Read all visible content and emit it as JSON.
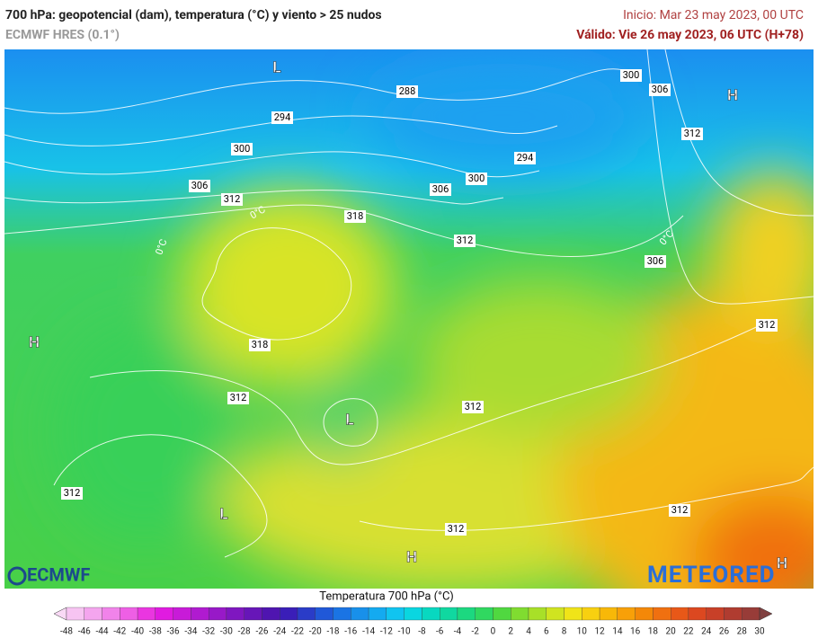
{
  "header": {
    "title": "700 hPa: geopotencial (dam), temperatura (°C) y viento > 25 nudos",
    "model": "ECMWF HRES (0.1°)",
    "init": "Inicio: Mar 23 may 2023, 00 UTC",
    "valid": "Válido: Vie 26 may 2023, 06 UTC (H+78)"
  },
  "map": {
    "contour_labels": [
      288,
      294,
      300,
      306,
      312,
      318,
      318,
      312,
      312,
      312,
      312,
      312,
      312,
      306,
      312,
      306,
      300,
      294,
      300,
      306,
      312
    ],
    "pressure_centers": [
      "L",
      "H",
      "H",
      "L",
      "L",
      "H",
      "H"
    ],
    "isotherm_labels": [
      "0°C",
      "0°C",
      "0°C"
    ],
    "logos": [
      "ECMWF",
      "METEORED"
    ]
  },
  "colorbar": {
    "title": "Temperatura 700 hPa (°C)",
    "ticks": [
      -48,
      -46,
      -44,
      -42,
      -40,
      -38,
      -36,
      -34,
      -32,
      -30,
      -28,
      -26,
      -24,
      -22,
      -20,
      -18,
      -16,
      -14,
      -12,
      -10,
      -8,
      -6,
      -4,
      -2,
      0,
      2,
      4,
      6,
      8,
      10,
      12,
      14,
      16,
      18,
      20,
      22,
      24,
      26,
      28,
      30
    ],
    "colors": [
      "#f9d9f5",
      "#f7c4f2",
      "#f4a5ee",
      "#f183ea",
      "#ee5fe5",
      "#ea36e0",
      "#e01be0",
      "#c81bd8",
      "#b01bd0",
      "#9819c8",
      "#7f17c0",
      "#6716b8",
      "#4f15b0",
      "#3a1eb8",
      "#2a3cc8",
      "#2058d8",
      "#1a74e4",
      "#1890ea",
      "#14aaf0",
      "#10c4f0",
      "#0ad6e0",
      "#08d8c0",
      "#10d8a0",
      "#1cd880",
      "#30d860",
      "#50d840",
      "#80dc30",
      "#a8e028",
      "#d0e420",
      "#f0e418",
      "#f8d010",
      "#f8b808",
      "#f8a008",
      "#f48808",
      "#f07010",
      "#e85818",
      "#dc4820",
      "#c84028",
      "#b03c30",
      "#983c38",
      "#804040"
    ]
  }
}
